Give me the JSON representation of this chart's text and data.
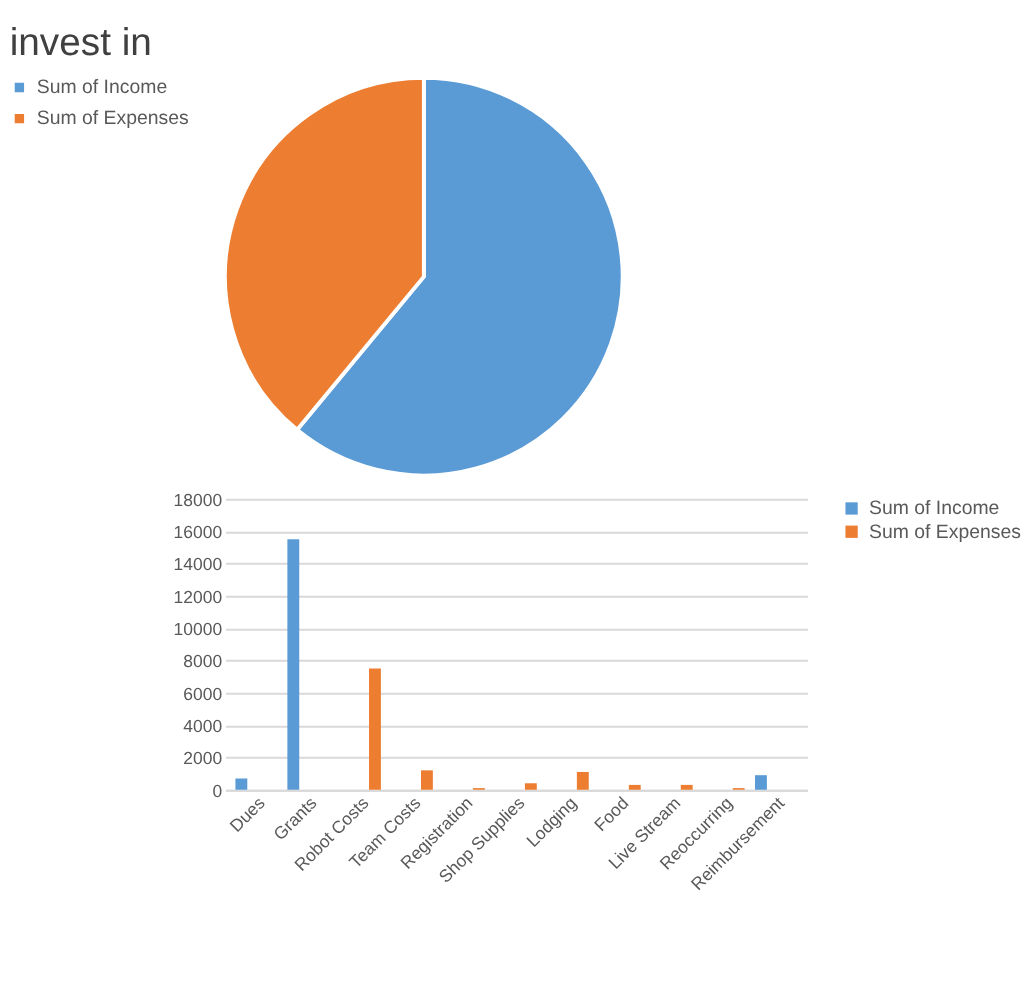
{
  "chart_data": [
    {
      "type": "pie",
      "title": "invest in",
      "categories": [
        "Sum of Income",
        "Sum of Expenses"
      ],
      "values": [
        61,
        39
      ],
      "colors": [
        "#5b9bd5",
        "#ed7d31"
      ],
      "legend": "left"
    },
    {
      "type": "bar",
      "categories": [
        "Dues",
        "Grants",
        "Robot Costs",
        "Team Costs",
        "Registration",
        "Shop Supplies",
        "Lodging",
        "Food",
        "Live Stream",
        "Reoccurring",
        "Reimbursement"
      ],
      "series": [
        {
          "name": "Sum of Income",
          "color": "#5b9bd5",
          "values": [
            700,
            15500,
            null,
            null,
            null,
            null,
            null,
            null,
            null,
            null,
            900
          ]
        },
        {
          "name": "Sum of Expenses",
          "color": "#ed7d31",
          "values": [
            null,
            null,
            7500,
            1200,
            100,
            400,
            1100,
            300,
            300,
            100,
            null
          ]
        }
      ],
      "ylim": [
        0,
        18000
      ],
      "yticks": [
        0,
        2000,
        4000,
        6000,
        8000,
        10000,
        12000,
        14000,
        16000,
        18000
      ],
      "grid": "y",
      "legend": "right"
    }
  ]
}
